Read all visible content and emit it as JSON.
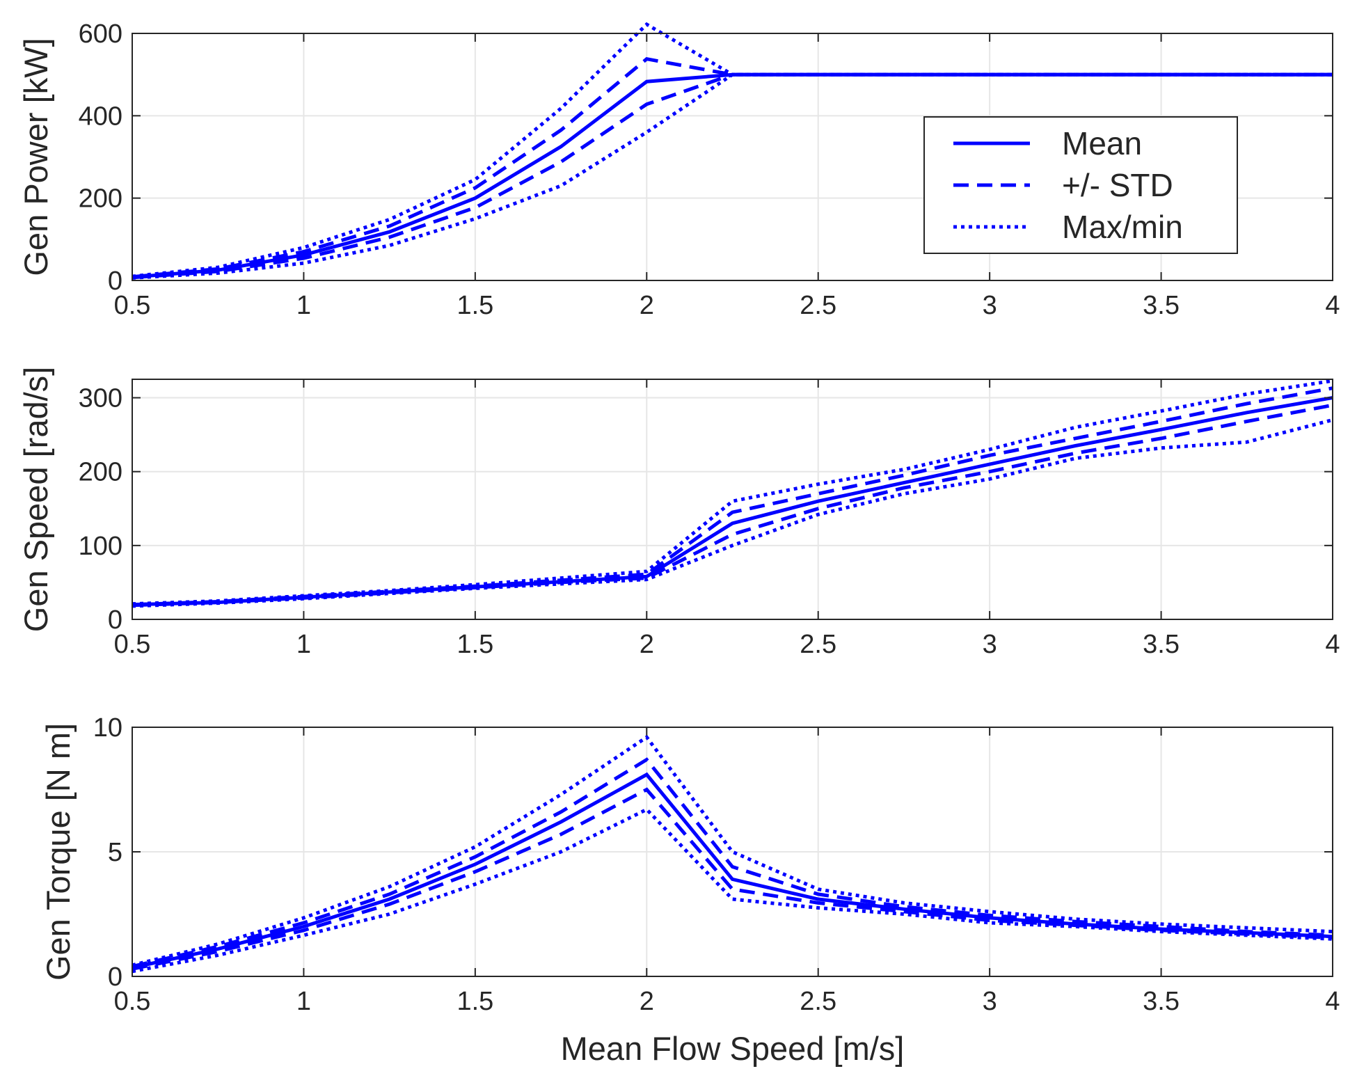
{
  "chart_data": [
    {
      "type": "line",
      "title": "",
      "xlabel": "",
      "ylabel": "Gen Power [kW]",
      "xlim": [
        0.5,
        4
      ],
      "ylim": [
        0,
        600
      ],
      "x_ticks": [
        "0.5",
        "1",
        "1.5",
        "2",
        "2.5",
        "3",
        "3.5",
        "4"
      ],
      "y_ticks": [
        "0",
        "200",
        "400",
        "600"
      ],
      "grid": true,
      "x": [
        0.5,
        0.75,
        1.0,
        1.25,
        1.5,
        1.75,
        2.0,
        2.25,
        2.5,
        2.75,
        3.0,
        3.25,
        3.5,
        3.75,
        4.0
      ],
      "series": [
        {
          "name": "Mean",
          "style": "solid",
          "values": [
            8,
            25,
            62,
            118,
            200,
            325,
            483,
            500,
            500,
            500,
            500,
            500,
            500,
            500,
            500
          ]
        },
        {
          "name": "+/- STD",
          "style": "dashed",
          "values": [
            9,
            28,
            70,
            132,
            225,
            365,
            538,
            500,
            500,
            500,
            500,
            500,
            500,
            500,
            500
          ]
        },
        {
          "name": "",
          "style": "dashed",
          "values": [
            7,
            22,
            54,
            105,
            177,
            288,
            428,
            500,
            500,
            500,
            500,
            500,
            500,
            500,
            500
          ]
        },
        {
          "name": "Max/min",
          "style": "dotted",
          "values": [
            10,
            32,
            80,
            148,
            245,
            418,
            622,
            500,
            500,
            500,
            500,
            500,
            500,
            500,
            500
          ]
        },
        {
          "name": "",
          "style": "dotted",
          "values": [
            6,
            18,
            42,
            85,
            150,
            230,
            360,
            500,
            500,
            500,
            500,
            500,
            500,
            500,
            500
          ]
        }
      ],
      "legend": {
        "position": "upper-right",
        "entries": [
          "Mean",
          "+/- STD",
          "Max/min"
        ]
      }
    },
    {
      "type": "line",
      "title": "",
      "xlabel": "",
      "ylabel": "Gen Speed [rad/s]",
      "xlim": [
        0.5,
        4
      ],
      "ylim": [
        0,
        325
      ],
      "x_ticks": [
        "0.5",
        "1",
        "1.5",
        "2",
        "2.5",
        "3",
        "3.5",
        "4"
      ],
      "y_ticks": [
        "0",
        "100",
        "200",
        "300"
      ],
      "grid": true,
      "x": [
        0.5,
        0.75,
        1.0,
        1.25,
        1.5,
        1.75,
        2.0,
        2.25,
        2.5,
        2.75,
        3.0,
        3.25,
        3.5,
        3.75,
        4.0
      ],
      "series": [
        {
          "name": "Mean",
          "style": "solid",
          "values": [
            20,
            23,
            30,
            37,
            44,
            51,
            58,
            130,
            160,
            185,
            210,
            235,
            257,
            280,
            300
          ]
        },
        {
          "name": "+/- STD",
          "style": "dashed",
          "values": [
            20,
            24,
            31,
            38,
            45,
            53,
            61,
            145,
            170,
            195,
            222,
            245,
            268,
            292,
            313
          ]
        },
        {
          "name": "",
          "style": "dashed",
          "values": [
            19,
            23,
            29,
            36,
            43,
            50,
            56,
            115,
            150,
            178,
            200,
            225,
            245,
            268,
            290
          ]
        },
        {
          "name": "Max/min",
          "style": "dotted",
          "values": [
            21,
            25,
            32,
            39,
            47,
            56,
            65,
            160,
            183,
            203,
            230,
            260,
            282,
            305,
            323
          ]
        },
        {
          "name": "",
          "style": "dotted",
          "values": [
            18,
            22,
            28,
            35,
            42,
            48,
            54,
            100,
            142,
            170,
            190,
            218,
            232,
            240,
            270
          ]
        }
      ],
      "legend": {
        "position": "none",
        "entries": []
      }
    },
    {
      "type": "line",
      "title": "",
      "xlabel": "Mean Flow Speed [m/s]",
      "ylabel": "Gen Torque [N m]",
      "xlim": [
        0.5,
        4
      ],
      "ylim": [
        0,
        10
      ],
      "x_ticks": [
        "0.5",
        "1",
        "1.5",
        "2",
        "2.5",
        "3",
        "3.5",
        "4"
      ],
      "y_ticks": [
        "0",
        "5",
        "10"
      ],
      "grid": true,
      "x": [
        0.5,
        0.75,
        1.0,
        1.25,
        1.5,
        1.75,
        2.0,
        2.25,
        2.5,
        2.75,
        3.0,
        3.25,
        3.5,
        3.75,
        4.0
      ],
      "series": [
        {
          "name": "Mean",
          "style": "solid",
          "values": [
            0.35,
            1.1,
            2.0,
            3.1,
            4.5,
            6.2,
            8.1,
            3.9,
            3.1,
            2.7,
            2.35,
            2.1,
            1.9,
            1.75,
            1.6
          ]
        },
        {
          "name": "+/- STD",
          "style": "dashed",
          "values": [
            0.4,
            1.2,
            2.15,
            3.3,
            4.8,
            6.6,
            8.7,
            4.4,
            3.3,
            2.8,
            2.45,
            2.2,
            2.0,
            1.8,
            1.65
          ]
        },
        {
          "name": "",
          "style": "dashed",
          "values": [
            0.3,
            1.0,
            1.85,
            2.9,
            4.2,
            5.7,
            7.5,
            3.5,
            2.95,
            2.6,
            2.25,
            2.05,
            1.85,
            1.7,
            1.55
          ]
        },
        {
          "name": "Max/min",
          "style": "dotted",
          "values": [
            0.45,
            1.3,
            2.35,
            3.6,
            5.2,
            7.3,
            9.6,
            5.0,
            3.5,
            2.95,
            2.6,
            2.3,
            2.1,
            1.95,
            1.8
          ]
        },
        {
          "name": "",
          "style": "dotted",
          "values": [
            0.2,
            0.85,
            1.65,
            2.5,
            3.7,
            5.0,
            6.7,
            3.1,
            2.75,
            2.5,
            2.15,
            2.0,
            1.8,
            1.65,
            1.5
          ]
        }
      ],
      "legend": {
        "position": "none",
        "entries": []
      }
    }
  ],
  "colors": {
    "series": "#0000ff",
    "axis": "#262626",
    "grid": "#e6e6e6",
    "background": "#ffffff"
  }
}
